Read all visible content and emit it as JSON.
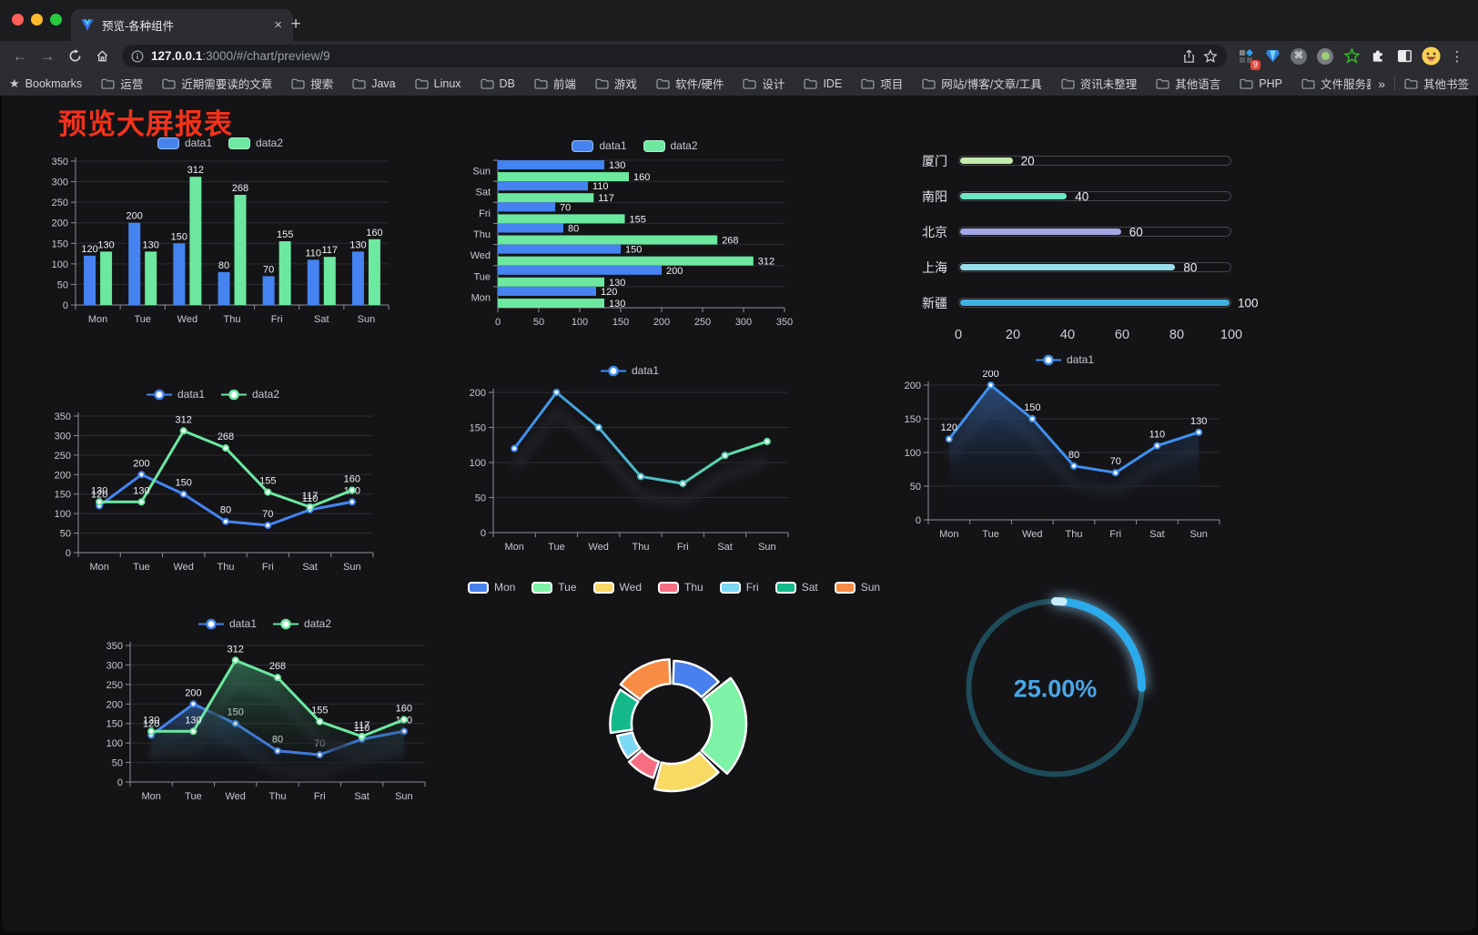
{
  "browser": {
    "tab": {
      "title": "预览-各种组件",
      "close_glyph": "×",
      "new_tab_glyph": "+"
    },
    "url": {
      "host": "127.0.0.1",
      "rest": ":3000/#/chart/preview/9"
    },
    "extensions_badge": "9",
    "menu_glyph": "⋮",
    "bookmarks_label": "Bookmarks",
    "bookmarks": [
      "运营",
      "近期需要读的文章",
      "搜索",
      "Java",
      "Linux",
      "DB",
      "前端",
      "游戏",
      "软件/硬件",
      "设计",
      "IDE",
      "项目",
      "网站/博客/文章/工具",
      "资讯未整理",
      "其他语言",
      "PHP",
      "文件服务器"
    ],
    "bookmarks_overflow": "»",
    "other_bookmarks": "其他书签"
  },
  "page": {
    "title": "预览大屏报表"
  },
  "colors": {
    "series_blue": "#4584f0",
    "series_green": "#6ce8a0",
    "title_red": "#f4321b",
    "gauge_blue": "#2baaec"
  },
  "chart_data": [
    {
      "id": "bar-grouped",
      "type": "bar",
      "categories": [
        "Mon",
        "Tue",
        "Wed",
        "Thu",
        "Fri",
        "Sat",
        "Sun"
      ],
      "series": [
        {
          "name": "data1",
          "color": "#4584f0",
          "values": [
            120,
            200,
            150,
            80,
            70,
            110,
            130
          ]
        },
        {
          "name": "data2",
          "color": "#6ce8a0",
          "values": [
            130,
            130,
            312,
            268,
            155,
            117,
            160
          ]
        }
      ],
      "ylim": [
        0,
        350
      ],
      "ystep": 50,
      "labels": true,
      "legend_position": "top",
      "grid": true
    },
    {
      "id": "bar-horizontal",
      "type": "hbar",
      "categories": [
        "Mon",
        "Tue",
        "Wed",
        "Thu",
        "Fri",
        "Sat",
        "Sun"
      ],
      "series": [
        {
          "name": "data1",
          "color": "#4584f0",
          "values": [
            120,
            200,
            150,
            80,
            70,
            110,
            130
          ]
        },
        {
          "name": "data2",
          "color": "#6ce8a0",
          "values": [
            130,
            130,
            312,
            268,
            155,
            117,
            160
          ]
        }
      ],
      "xlim": [
        0,
        350
      ],
      "xstep": 50,
      "labels": true,
      "legend_position": "top",
      "grid": true
    },
    {
      "id": "progress-cities",
      "type": "progress",
      "max": 100,
      "xticks": [
        0,
        20,
        40,
        60,
        80,
        100
      ],
      "items": [
        {
          "label": "厦门",
          "value": 20,
          "color": "#c4ebad"
        },
        {
          "label": "南阳",
          "value": 40,
          "color": "#6be6c1"
        },
        {
          "label": "北京",
          "value": 60,
          "color": "#a0a7e6"
        },
        {
          "label": "上海",
          "value": 80,
          "color": "#96dee8"
        },
        {
          "label": "新疆",
          "value": 100,
          "color": "#3fb1e3"
        }
      ]
    },
    {
      "id": "line-two-series",
      "type": "line",
      "categories": [
        "Mon",
        "Tue",
        "Wed",
        "Thu",
        "Fri",
        "Sat",
        "Sun"
      ],
      "series": [
        {
          "name": "data1",
          "color": "#4584f0",
          "values": [
            120,
            200,
            150,
            80,
            70,
            110,
            130
          ]
        },
        {
          "name": "data2",
          "color": "#6ce8a0",
          "values": [
            130,
            130,
            312,
            268,
            155,
            117,
            160
          ]
        }
      ],
      "ylim": [
        0,
        350
      ],
      "ystep": 50,
      "labels": true,
      "legend_position": "top",
      "grid": true
    },
    {
      "id": "line-gradient",
      "type": "line",
      "categories": [
        "Mon",
        "Tue",
        "Wed",
        "Thu",
        "Fri",
        "Sat",
        "Sun"
      ],
      "series": [
        {
          "name": "data1",
          "gradient": [
            "#3f8cf0",
            "#5ce6a0"
          ],
          "values": [
            120,
            200,
            150,
            80,
            70,
            110,
            130
          ]
        }
      ],
      "ylim": [
        0,
        200
      ],
      "ystep": 50,
      "labels": false,
      "shadow": true,
      "legend_position": "top",
      "grid": true
    },
    {
      "id": "area-single",
      "type": "line",
      "categories": [
        "Mon",
        "Tue",
        "Wed",
        "Thu",
        "Fri",
        "Sat",
        "Sun"
      ],
      "series": [
        {
          "name": "data1",
          "color": "#4090f0",
          "area": "rgba(62,120,200,0.55)",
          "values": [
            120,
            200,
            150,
            80,
            70,
            110,
            130
          ]
        }
      ],
      "ylim": [
        0,
        200
      ],
      "ystep": 50,
      "labels": true,
      "shadow": true,
      "legend_position": "top",
      "grid": true
    },
    {
      "id": "area-two-series",
      "type": "line",
      "categories": [
        "Mon",
        "Tue",
        "Wed",
        "Thu",
        "Fri",
        "Sat",
        "Sun"
      ],
      "series": [
        {
          "name": "data1",
          "color": "#4584f0",
          "area": "rgba(62,120,200,0.55)",
          "values": [
            120,
            200,
            150,
            80,
            70,
            110,
            130
          ]
        },
        {
          "name": "data2",
          "color": "#6ce8a0",
          "area": "rgba(80,200,140,0.45)",
          "values": [
            130,
            130,
            312,
            268,
            155,
            117,
            160
          ]
        }
      ],
      "ylim": [
        0,
        350
      ],
      "ystep": 50,
      "labels": true,
      "shadow": true,
      "legend_position": "top",
      "grid": true
    },
    {
      "id": "pie-rose",
      "type": "pie",
      "rose": true,
      "categories": [
        "Mon",
        "Tue",
        "Wed",
        "Thu",
        "Fri",
        "Sat",
        "Sun"
      ],
      "values": [
        120,
        200,
        150,
        80,
        70,
        110,
        130
      ],
      "colors": [
        "#4880ee",
        "#7ef2a6",
        "#f8d964",
        "#f76e82",
        "#7cd8f4",
        "#14b98a",
        "#f88c44"
      ],
      "legend_position": "top"
    },
    {
      "id": "gauge-percent",
      "type": "gauge",
      "label": "25.00%",
      "percent": 25,
      "color": "#2baaec",
      "track": "#1d4b59",
      "text_color": "#47a7e8"
    }
  ]
}
